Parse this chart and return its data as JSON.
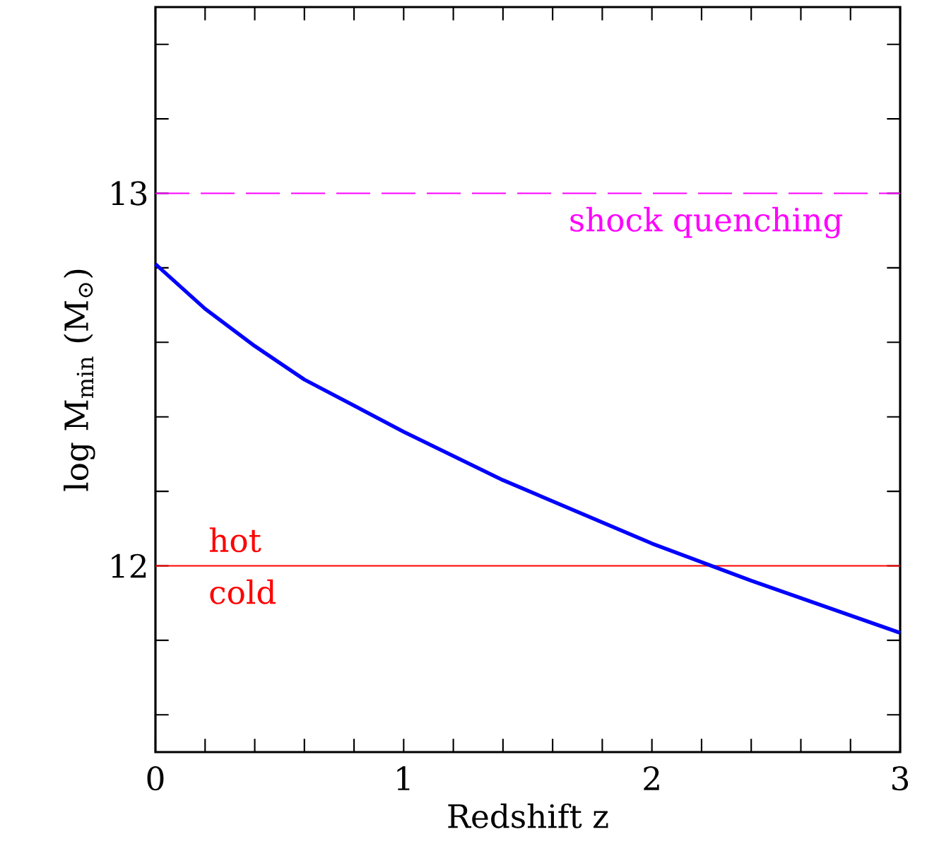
{
  "chart_data": {
    "type": "line",
    "xlabel": "Redshift z",
    "ylabel": "log M$_{min}$  (M$_{⊙}$)",
    "xlim": [
      0,
      3
    ],
    "ylim": [
      11.5,
      13.5
    ],
    "xticks": [
      0,
      {
        "value": 0.2,
        "label": null
      },
      {
        "value": 0.4,
        "label": null
      },
      {
        "value": 0.6,
        "label": null
      },
      {
        "value": 0.8,
        "label": null
      },
      1,
      {
        "value": 1.2,
        "label": null
      },
      {
        "value": 1.4,
        "label": null
      },
      {
        "value": 1.6,
        "label": null
      },
      {
        "value": 1.8,
        "label": null
      },
      2,
      {
        "value": 2.2,
        "label": null
      },
      {
        "value": 2.4,
        "label": null
      },
      {
        "value": 2.6,
        "label": null
      },
      {
        "value": 2.8,
        "label": null
      },
      3
    ],
    "yticks": [
      {
        "value": 11.6,
        "label": null
      },
      {
        "value": 11.8,
        "label": null
      },
      12,
      {
        "value": 12.2,
        "label": null
      },
      {
        "value": 12.4,
        "label": null
      },
      {
        "value": 12.6,
        "label": null
      },
      {
        "value": 12.8,
        "label": null
      },
      13,
      {
        "value": 13.2,
        "label": null
      },
      {
        "value": 13.4,
        "label": null
      }
    ],
    "series": [
      {
        "color": "#0000ff",
        "x": [
          0,
          0.2,
          0.4,
          0.6,
          1.0,
          1.4,
          2.0,
          2.2,
          2.4,
          3.0
        ],
        "values": [
          12.81,
          12.69,
          12.59,
          12.5,
          12.36,
          12.23,
          12.06,
          12.01,
          11.96,
          11.82
        ]
      }
    ],
    "ref_lines": [
      {
        "axis": "y",
        "value": 13,
        "label": "shock quenching",
        "color": "#ff00ff",
        "line_style": "dashed"
      },
      {
        "axis": "y",
        "value": 12,
        "color": "#ff0000",
        "line_style": "solid"
      }
    ],
    "annotations": [
      "hot",
      "cold"
    ],
    "grid": false,
    "marker": "none",
    "line_style": "solid"
  }
}
